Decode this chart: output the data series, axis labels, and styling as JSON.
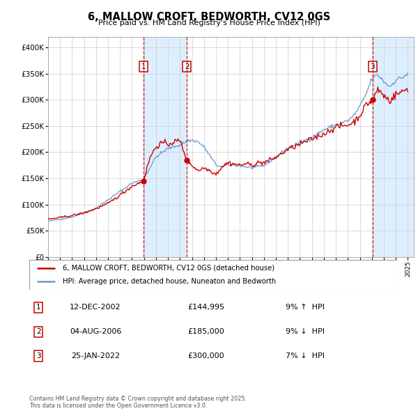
{
  "title": "6, MALLOW CROFT, BEDWORTH, CV12 0GS",
  "subtitle": "Price paid vs. HM Land Registry's House Price Index (HPI)",
  "sale_label": "6, MALLOW CROFT, BEDWORTH, CV12 0GS (detached house)",
  "hpi_label": "HPI: Average price, detached house, Nuneaton and Bedworth",
  "ylim": [
    0,
    420000
  ],
  "yticks": [
    0,
    50000,
    100000,
    150000,
    200000,
    250000,
    300000,
    350000,
    400000
  ],
  "ytick_labels": [
    "£0",
    "£50K",
    "£100K",
    "£150K",
    "£200K",
    "£250K",
    "£300K",
    "£350K",
    "£400K"
  ],
  "sale_color": "#cc0000",
  "hpi_color": "#6699cc",
  "vline_color": "#cc0000",
  "shade_color": "#ddeeff",
  "grid_color": "#cccccc",
  "transactions": [
    {
      "num": 1,
      "date": "12-DEC-2002",
      "price": 144995,
      "pct": "9%",
      "dir": "↑",
      "year": 2002.95
    },
    {
      "num": 2,
      "date": "04-AUG-2006",
      "price": 185000,
      "pct": "9%",
      "dir": "↓",
      "year": 2006.58
    },
    {
      "num": 3,
      "date": "25-JAN-2022",
      "price": 300000,
      "pct": "7%",
      "dir": "↓",
      "year": 2022.07
    }
  ],
  "footer": "Contains HM Land Registry data © Crown copyright and database right 2025.\nThis data is licensed under the Open Government Licence v3.0."
}
